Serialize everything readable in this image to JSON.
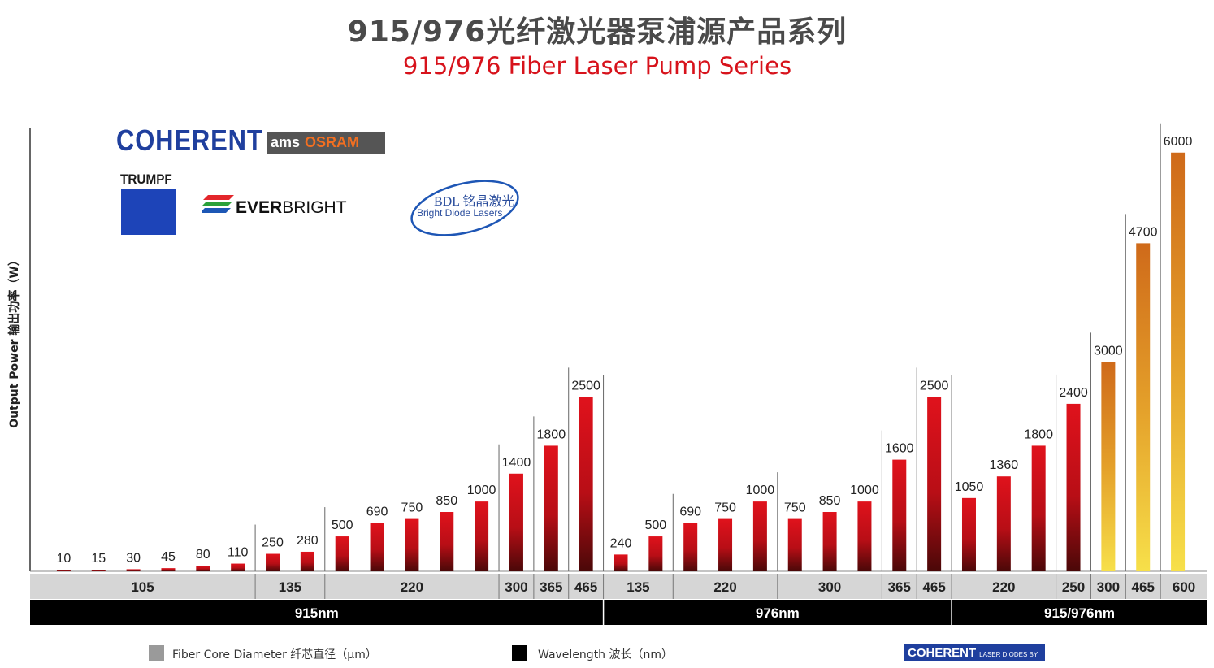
{
  "title": "915/976光纤激光器泵浦源产品系列",
  "subtitle": "915/976 Fiber Laser Pump Series",
  "logos": {
    "coherent": "COHERENT",
    "ams": "ams",
    "osram": "OSRAM",
    "trumpf": "TRUMPF",
    "everbright_bold": "EVER",
    "everbright_rest": "BRIGHT",
    "bdl_main": "BDL 铭晶激光",
    "bdl_sub": "Bright Diode Lasers",
    "footer_coherent": "COHERENT",
    "footer_tagline": "LASER DIODES BY"
  },
  "legend": {
    "fiber_core": "Fiber Core Diameter  纤芯直径（μm）",
    "wavelength": "Wavelength  波长（nm）"
  },
  "colors": {
    "red_bar_top": "#e0121c",
    "red_bar_bottom": "#4a0808",
    "gold_bar_top": "#cf6a1a",
    "gold_bar_bottom": "#f7e04a",
    "fiber_row": "#d6d6d6",
    "wavelength_row": "#000000",
    "legend_fiber_swatch": "#9a9a9a",
    "legend_wavelength_swatch": "#000000"
  },
  "chart_data": {
    "type": "bar",
    "ylabel": "Output Power  输出功率（W）",
    "ylim": [
      0,
      6300
    ],
    "values": [
      10,
      15,
      30,
      45,
      80,
      110,
      250,
      280,
      500,
      690,
      750,
      850,
      1000,
      1400,
      1800,
      2500,
      240,
      500,
      690,
      750,
      1000,
      750,
      850,
      1000,
      1600,
      2500,
      1050,
      1360,
      1800,
      2400,
      3000,
      4700,
      6000
    ],
    "value_labels": [
      "10",
      "15",
      "30",
      "45",
      "80",
      "110",
      "250",
      "280",
      "500",
      "690",
      "750",
      "850",
      "1000",
      "1400",
      "1800",
      "2500",
      "240",
      "500",
      "690",
      "750",
      "1000",
      "750",
      "850",
      "1000",
      "1600",
      "2500",
      "1050",
      "1360",
      "1800",
      "2400",
      "3000",
      "4700",
      "6000"
    ],
    "bar_style": [
      "red",
      "red",
      "red",
      "red",
      "red",
      "red",
      "red",
      "red",
      "red",
      "red",
      "red",
      "red",
      "red",
      "red",
      "red",
      "red",
      "red",
      "red",
      "red",
      "red",
      "red",
      "red",
      "red",
      "red",
      "red",
      "red",
      "red",
      "red",
      "red",
      "red",
      "gold",
      "gold",
      "gold"
    ],
    "fiber_core_groups": [
      {
        "label": "105",
        "bar_count": 6
      },
      {
        "label": "135",
        "bar_count": 2
      },
      {
        "label": "220",
        "bar_count": 5
      },
      {
        "label": "300",
        "bar_count": 1
      },
      {
        "label": "365",
        "bar_count": 1
      },
      {
        "label": "465",
        "bar_count": 1
      },
      {
        "label": "135",
        "bar_count": 2
      },
      {
        "label": "220",
        "bar_count": 3
      },
      {
        "label": "300",
        "bar_count": 3
      },
      {
        "label": "365",
        "bar_count": 1
      },
      {
        "label": "465",
        "bar_count": 1
      },
      {
        "label": "220",
        "bar_count": 3
      },
      {
        "label": "250",
        "bar_count": 1
      },
      {
        "label": "300",
        "bar_count": 1
      },
      {
        "label": "465",
        "bar_count": 1
      },
      {
        "label": "600",
        "bar_count": 1
      }
    ],
    "wavelength_groups": [
      {
        "label": "915nm",
        "bar_count": 16
      },
      {
        "label": "976nm",
        "bar_count": 10
      },
      {
        "label": "915/976nm",
        "bar_count": 7
      }
    ],
    "grid": false,
    "legend_position": "bottom"
  }
}
